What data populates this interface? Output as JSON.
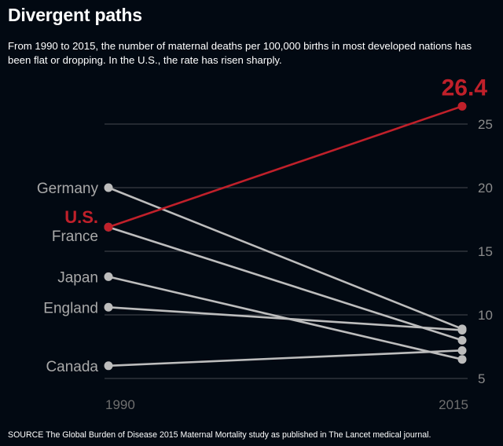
{
  "title": "Divergent paths",
  "subtitle": "From 1990 to 2015, the number of maternal deaths per 100,000 births in most developed nations has been flat or dropping. In the U.S., the rate has risen sharply.",
  "source": "SOURCE The Global Burden of Disease 2015 Maternal Mortality study as published in The Lancet medical journal.",
  "chart_data": {
    "type": "line",
    "title": "Divergent paths",
    "xlabel": "",
    "ylabel": "Maternal deaths per 100,000 births",
    "x": [
      "1990",
      "2015"
    ],
    "ylim": [
      5,
      26.4
    ],
    "yticks": [
      5,
      10,
      15,
      20,
      25
    ],
    "grid": true,
    "highlight_label": "26.4",
    "colors": {
      "highlight": "#c0202a",
      "default": "#bdbdbd"
    },
    "series": [
      {
        "name": "Germany",
        "values": [
          20.0,
          8.9
        ],
        "highlight": false
      },
      {
        "name": "U.S.",
        "values": [
          16.9,
          26.4
        ],
        "highlight": true
      },
      {
        "name": "France",
        "values": [
          16.9,
          8.0
        ],
        "highlight": false
      },
      {
        "name": "Japan",
        "values": [
          13.0,
          6.5
        ],
        "highlight": false
      },
      {
        "name": "England",
        "values": [
          10.6,
          8.8
        ],
        "highlight": false
      },
      {
        "name": "Canada",
        "values": [
          6.0,
          7.2
        ],
        "highlight": false
      }
    ]
  }
}
